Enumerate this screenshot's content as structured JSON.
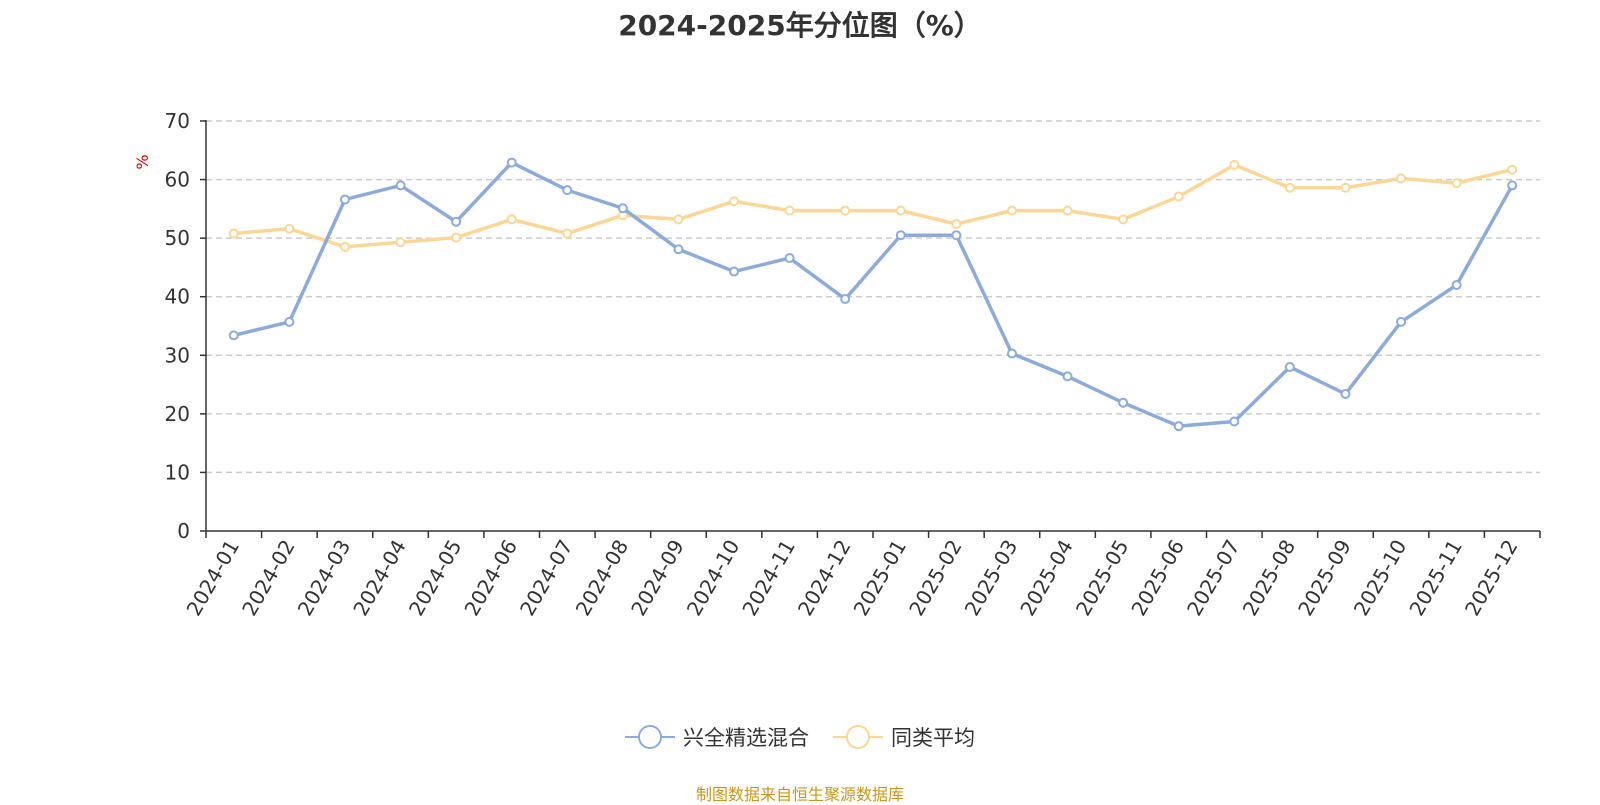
{
  "chart_data": {
    "type": "line",
    "title": "2024-2025年分位图（%）",
    "ylabel": "%",
    "xlabel": "",
    "ylim": [
      0,
      70
    ],
    "yticks": [
      0,
      10,
      20,
      30,
      40,
      50,
      60,
      70
    ],
    "grid": true,
    "legend_position": "bottom-center",
    "categories": [
      "2024-01",
      "2024-02",
      "2024-03",
      "2024-04",
      "2024-05",
      "2024-06",
      "2024-07",
      "2024-08",
      "2024-09",
      "2024-10",
      "2024-11",
      "2024-12",
      "2025-01",
      "2025-02",
      "2025-03",
      "2025-04",
      "2025-05",
      "2025-06",
      "2025-07",
      "2025-08",
      "2025-09",
      "2025-10",
      "2025-11",
      "2025-12"
    ],
    "series": [
      {
        "name": "兴全精选混合",
        "color": "#8eaad8",
        "values": [
          33.4,
          35.7,
          56.6,
          59.0,
          52.8,
          62.9,
          58.2,
          55.1,
          48.1,
          44.3,
          46.6,
          39.6,
          50.5,
          50.5,
          30.3,
          26.4,
          21.9,
          17.9,
          18.7,
          28.0,
          23.4,
          35.7,
          42.0,
          59.0
        ]
      },
      {
        "name": "同类平均",
        "color": "#fad797",
        "values": [
          50.8,
          51.6,
          48.5,
          49.3,
          50.1,
          53.2,
          50.8,
          53.9,
          53.2,
          56.3,
          54.7,
          54.7,
          54.7,
          52.4,
          54.7,
          54.7,
          53.2,
          57.1,
          62.5,
          58.6,
          58.6,
          60.2,
          59.4,
          61.7
        ]
      }
    ]
  },
  "source_note": "制图数据来自恒生聚源数据库"
}
